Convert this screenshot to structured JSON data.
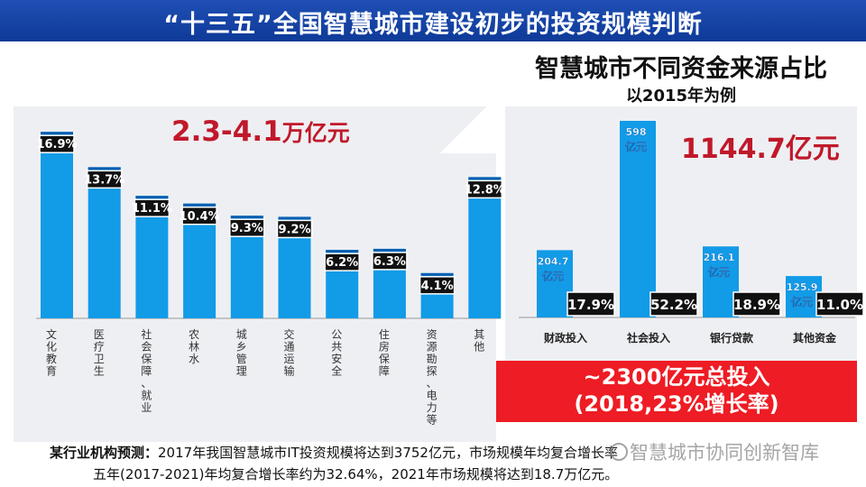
{
  "header": {
    "title": "“十三五”全国智慧城市建设初步的投资规模判断"
  },
  "left_highlight": {
    "value": "2.3-4.1",
    "unit": "万亿元"
  },
  "right_header": {
    "title": "智慧城市不同资金来源占比",
    "subtitle": "以2015年为例"
  },
  "right_highlight": {
    "value": "1144.7亿元"
  },
  "total_box": {
    "line1": "~2300亿元总投入",
    "line2": "(2018,23%增长率)"
  },
  "footnote": {
    "label": "某行业机构预测：",
    "line1": "2017年我国智慧城市IT投资规模将达到3752亿元，市场规模年均复合增长率",
    "line2": "五年(2017-2021)年均复合增长率约为32.64%，2021年市场规模将达到18.7万亿元。"
  },
  "watermark": {
    "text": "智慧城市协同创新智库"
  },
  "colors": {
    "bar": "#129be7",
    "bar_top": "#0a5fb0",
    "highlight": "#c0192a",
    "title_bg": "#1747ad",
    "redbox": "#ee1c24"
  },
  "chart_data": [
    {
      "type": "bar",
      "categories": [
        "文化教育",
        "医疗卫生",
        "社会保障、就业",
        "农林水",
        "城乡管理",
        "交通运输",
        "公共安全",
        "住房保障",
        "资源勘探、电力等",
        "其他"
      ],
      "values": [
        16.9,
        13.7,
        11.1,
        10.4,
        9.3,
        9.2,
        6.2,
        6.3,
        4.1,
        12.8
      ],
      "data_labels": [
        "16.9%",
        "13.7%",
        "11.1%",
        "10.4%",
        "9.3%",
        "9.2%",
        "6.2%",
        "6.3%",
        "4.1%",
        "12.8%"
      ],
      "ylim": [
        0,
        18
      ]
    },
    {
      "type": "bar",
      "categories": [
        "财政投入",
        "社会投入",
        "银行贷款",
        "其他资金"
      ],
      "values": [
        204.7,
        598,
        216.1,
        125.9
      ],
      "value_labels": [
        "204.7",
        "598",
        "216.1",
        "125.9"
      ],
      "value_unit": "亿元",
      "percent_labels": [
        "17.9%",
        "52.2%",
        "18.9%",
        "11.0%"
      ],
      "ylim": [
        0,
        620
      ]
    }
  ]
}
